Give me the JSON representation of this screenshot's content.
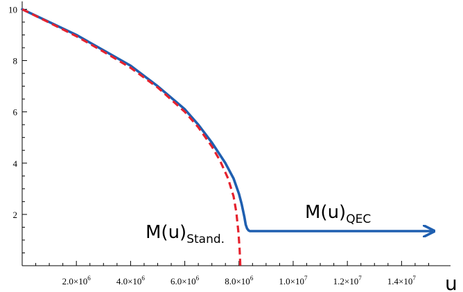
{
  "chart_data": {
    "type": "line",
    "title": "",
    "xlabel": "u",
    "ylabel": "",
    "xlim": [
      0,
      15500000
    ],
    "ylim": [
      0,
      10.2
    ],
    "x_ticks": [
      {
        "value": 2000000,
        "mant": "2.0",
        "exp": "6"
      },
      {
        "value": 4000000,
        "mant": "4.0",
        "exp": "6"
      },
      {
        "value": 6000000,
        "mant": "6.0",
        "exp": "6"
      },
      {
        "value": 8000000,
        "mant": "8.0",
        "exp": "6"
      },
      {
        "value": 10000000,
        "mant": "1.0",
        "exp": "7"
      },
      {
        "value": 12000000,
        "mant": "1.2",
        "exp": "7"
      },
      {
        "value": 14000000,
        "mant": "1.4",
        "exp": "7"
      }
    ],
    "y_ticks": [
      {
        "value": 2,
        "label": "2"
      },
      {
        "value": 4,
        "label": "4"
      },
      {
        "value": 6,
        "label": "6"
      },
      {
        "value": 8,
        "label": "8"
      },
      {
        "value": 10,
        "label": "10"
      }
    ],
    "series": [
      {
        "name": "M(u)QEC",
        "color": "#1f5fb0",
        "style": "solid",
        "arrow": true,
        "x": [
          0,
          1000000,
          2000000,
          3000000,
          4000000,
          5000000,
          6000000,
          6500000,
          7000000,
          7500000,
          7800000,
          8000000,
          8100000,
          8200000,
          8250000,
          8300000,
          8350000,
          8400000,
          8500000,
          10000000,
          12000000,
          14000000,
          15100000
        ],
        "y": [
          10,
          9.5,
          9.0,
          8.4,
          7.8,
          7.0,
          6.1,
          5.5,
          4.8,
          4.0,
          3.4,
          2.8,
          2.4,
          1.9,
          1.6,
          1.45,
          1.38,
          1.35,
          1.35,
          1.35,
          1.35,
          1.35,
          1.35
        ]
      },
      {
        "name": "M(u)Stand.",
        "color": "#e5222e",
        "style": "dashed",
        "x": [
          0,
          1000000,
          2000000,
          3000000,
          4000000,
          5000000,
          6000000,
          6500000,
          7000000,
          7300000,
          7600000,
          7800000,
          7900000,
          7980000,
          8020000,
          8040000,
          8050000
        ],
        "y": [
          10,
          9.48,
          8.95,
          8.35,
          7.72,
          6.95,
          6.0,
          5.4,
          4.65,
          4.1,
          3.4,
          2.7,
          2.1,
          1.3,
          0.7,
          0.3,
          0
        ]
      }
    ],
    "annotations": {
      "qec": {
        "base": "M(u)",
        "sub": "QEC"
      },
      "standard": {
        "base": "M(u)",
        "sub": "Stand."
      }
    },
    "grid": false
  }
}
